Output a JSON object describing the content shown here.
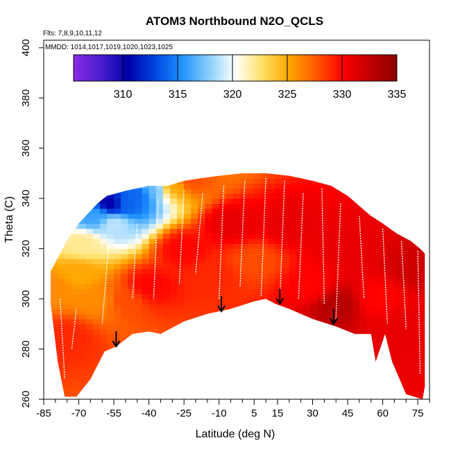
{
  "chart_data": {
    "type": "heatmap",
    "title": "ATOM3 Northbound N2O_QCLS",
    "subtitle_flights": "Flts: 7,8,9,10,11,12",
    "subtitle_dates": "MMDD: 1014,1017,1019,1020,1023,1025",
    "xlabel": "Latitude (deg N)",
    "ylabel": "Theta (C)",
    "xlim": [
      -85,
      80
    ],
    "ylim": [
      260,
      403
    ],
    "x_ticks": [
      -85,
      -70,
      -55,
      -40,
      -25,
      -10,
      5,
      15,
      30,
      45,
      60,
      75
    ],
    "y_ticks": [
      260,
      280,
      300,
      320,
      340,
      360,
      380,
      400
    ],
    "colorbar": {
      "range": [
        305.5,
        335
      ],
      "ticks": [
        310,
        315,
        320,
        325,
        330,
        335
      ],
      "colors": [
        "#8a2be2",
        "#4b1fd0",
        "#0000a8",
        "#0044e0",
        "#1e90ff",
        "#87cefa",
        "#ffffff",
        "#ffe066",
        "#ffa500",
        "#ff5a00",
        "#ff0000",
        "#c00000",
        "#8b0000"
      ]
    },
    "coverage": {
      "upper_theta": [
        [
          -82,
          311
        ],
        [
          -78,
          318
        ],
        [
          -74,
          325
        ],
        [
          -70,
          330
        ],
        [
          -66,
          334
        ],
        [
          -62,
          338
        ],
        [
          -58,
          341
        ],
        [
          -54,
          342
        ],
        [
          -50,
          343
        ],
        [
          -45,
          344
        ],
        [
          -40,
          345
        ],
        [
          -32,
          345
        ],
        [
          -25,
          347
        ],
        [
          -18,
          348
        ],
        [
          -10,
          349
        ],
        [
          0,
          350
        ],
        [
          10,
          350
        ],
        [
          20,
          349
        ],
        [
          30,
          347
        ],
        [
          38,
          345
        ],
        [
          45,
          341
        ],
        [
          50,
          337
        ],
        [
          55,
          333
        ],
        [
          60,
          330
        ],
        [
          66,
          326
        ],
        [
          72,
          323
        ],
        [
          76,
          320
        ],
        [
          78,
          318
        ]
      ],
      "lower_theta": [
        [
          -82,
          298
        ],
        [
          -79,
          275
        ],
        [
          -76,
          261
        ],
        [
          -71,
          261
        ],
        [
          -65,
          268
        ],
        [
          -59,
          279
        ],
        [
          -54,
          281
        ],
        [
          -47,
          286
        ],
        [
          -40,
          287
        ],
        [
          -35,
          286
        ],
        [
          -25,
          291
        ],
        [
          -15,
          294
        ],
        [
          -5,
          296
        ],
        [
          5,
          299
        ],
        [
          10,
          300
        ],
        [
          14,
          298
        ],
        [
          20,
          296
        ],
        [
          30,
          292
        ],
        [
          40,
          289
        ],
        [
          48,
          286
        ],
        [
          55,
          286
        ],
        [
          57,
          275
        ],
        [
          61,
          286
        ],
        [
          64,
          275
        ],
        [
          70,
          262
        ],
        [
          77,
          260
        ],
        [
          78,
          265
        ]
      ]
    },
    "field": [
      {
        "lat": -80,
        "theta": 305,
        "value": 326
      },
      {
        "lat": -75,
        "theta": 285,
        "value": 329
      },
      {
        "lat": -70,
        "theta": 310,
        "value": 325
      },
      {
        "lat": -68,
        "theta": 322,
        "value": 322
      },
      {
        "lat": -63,
        "theta": 333,
        "value": 316
      },
      {
        "lat": -56,
        "theta": 338,
        "value": 310
      },
      {
        "lat": -55,
        "theta": 330,
        "value": 319
      },
      {
        "lat": -50,
        "theta": 338,
        "value": 314
      },
      {
        "lat": -45,
        "theta": 342,
        "value": 314
      },
      {
        "lat": -38,
        "theta": 344,
        "value": 317
      },
      {
        "lat": -30,
        "theta": 345,
        "value": 325
      },
      {
        "lat": -22,
        "theta": 347,
        "value": 328
      },
      {
        "lat": -62,
        "theta": 300,
        "value": 326
      },
      {
        "lat": -50,
        "theta": 300,
        "value": 328
      },
      {
        "lat": -40,
        "theta": 305,
        "value": 330
      },
      {
        "lat": -25,
        "theta": 320,
        "value": 330
      },
      {
        "lat": -12,
        "theta": 310,
        "value": 329
      },
      {
        "lat": -5,
        "theta": 330,
        "value": 331
      },
      {
        "lat": 5,
        "theta": 315,
        "value": 328
      },
      {
        "lat": 20,
        "theta": 330,
        "value": 331
      },
      {
        "lat": 30,
        "theta": 305,
        "value": 330
      },
      {
        "lat": 40,
        "theta": 298,
        "value": 333
      },
      {
        "lat": 45,
        "theta": 320,
        "value": 331
      },
      {
        "lat": 58,
        "theta": 300,
        "value": 330
      },
      {
        "lat": 70,
        "theta": 290,
        "value": 331
      },
      {
        "lat": 75,
        "theta": 312,
        "value": 332
      }
    ],
    "arrows": [
      {
        "lat": -54,
        "theta": 281
      },
      {
        "lat": -9,
        "theta": 295
      },
      {
        "lat": 16,
        "theta": 298
      },
      {
        "lat": 39,
        "theta": 290
      }
    ],
    "flight_tracks": [
      [
        [
          -78,
          300
        ],
        [
          -76,
          268
        ]
      ],
      [
        [
          -71,
          296
        ],
        [
          -73,
          280
        ]
      ],
      [
        [
          -57,
          324
        ],
        [
          -60,
          290
        ]
      ],
      [
        [
          -45,
          330
        ],
        [
          -47,
          300
        ]
      ],
      [
        [
          -36,
          339
        ],
        [
          -38,
          300
        ]
      ],
      [
        [
          -25,
          343
        ],
        [
          -27,
          306
        ]
      ],
      [
        [
          -17,
          342
        ],
        [
          -20,
          310
        ]
      ],
      [
        [
          -8,
          345
        ],
        [
          -10,
          300
        ]
      ],
      [
        [
          1,
          347
        ],
        [
          -1,
          305
        ]
      ],
      [
        [
          10,
          348
        ],
        [
          8,
          301
        ]
      ],
      [
        [
          18,
          347
        ],
        [
          16,
          299
        ]
      ],
      [
        [
          26,
          342
        ],
        [
          24,
          300
        ]
      ],
      [
        [
          34,
          344
        ],
        [
          35,
          298
        ]
      ],
      [
        [
          42,
          338
        ],
        [
          40,
          292
        ]
      ],
      [
        [
          50,
          333
        ],
        [
          52,
          300
        ]
      ],
      [
        [
          60,
          328
        ],
        [
          62,
          290
        ]
      ],
      [
        [
          68,
          323
        ],
        [
          70,
          288
        ]
      ],
      [
        [
          75,
          319
        ],
        [
          76,
          270
        ]
      ]
    ]
  }
}
